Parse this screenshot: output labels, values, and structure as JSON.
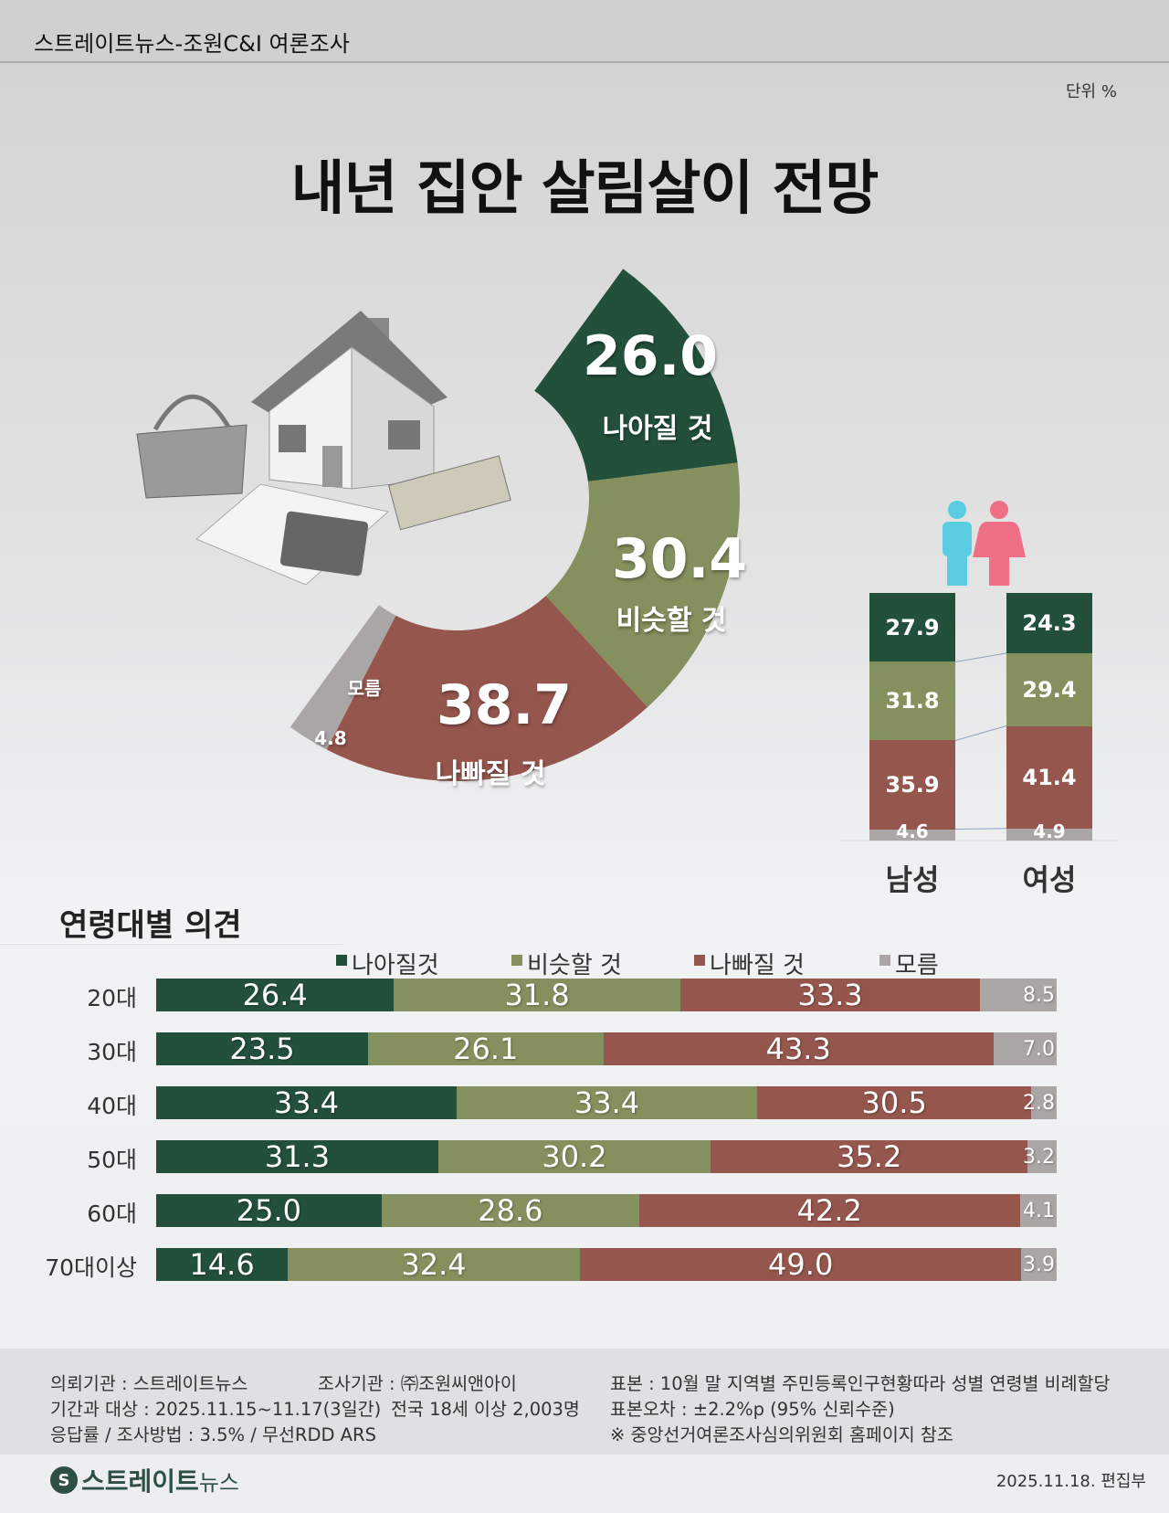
{
  "header": {
    "source": "스트레이트뉴스-조원C&I 여론조사"
  },
  "unit": "단위 %",
  "title": "내년 집안 살림살이 전망",
  "colors": {
    "better": "#23503a",
    "same": "#84905e",
    "worse": "#95564d",
    "unknown": "#aaa6a6"
  },
  "chart_data": [
    {
      "type": "pie",
      "title": "내년 집안 살림살이 전망",
      "variant": "half-donut",
      "categories": [
        "나아질 것",
        "비슷할 것",
        "나빠질 것",
        "모름"
      ],
      "values": [
        26.0,
        30.4,
        38.7,
        4.8
      ],
      "labels": [
        "26.0",
        "30.4",
        "38.7",
        "4.8"
      ]
    },
    {
      "type": "bar",
      "stacked": true,
      "orientation": "vertical",
      "categories": [
        "남성",
        "여성"
      ],
      "series": [
        {
          "name": "나아질 것",
          "values": [
            27.9,
            24.3
          ],
          "labels": [
            "27.9",
            "24.3"
          ]
        },
        {
          "name": "비슷할 것",
          "values": [
            31.8,
            29.4
          ],
          "labels": [
            "31.8",
            "29.4"
          ]
        },
        {
          "name": "나빠질 것",
          "values": [
            35.9,
            41.4
          ],
          "labels": [
            "35.9",
            "41.4"
          ]
        },
        {
          "name": "모름",
          "values": [
            4.6,
            4.9
          ],
          "labels": [
            "4.6",
            "4.9"
          ]
        }
      ]
    },
    {
      "type": "bar",
      "stacked": true,
      "orientation": "horizontal",
      "title": "연령대별 의견",
      "legend": [
        "나아질것",
        "비슷할 것",
        "나빠질 것",
        "모름"
      ],
      "legend_position": "top",
      "categories": [
        "20대",
        "30대",
        "40대",
        "50대",
        "60대",
        "70대이상"
      ],
      "series": [
        {
          "name": "나아질것",
          "values": [
            26.4,
            23.5,
            33.4,
            31.3,
            25.0,
            14.6
          ],
          "labels": [
            "26.4",
            "23.5",
            "33.4",
            "31.3",
            "25.0",
            "14.6"
          ]
        },
        {
          "name": "비슷할 것",
          "values": [
            31.8,
            26.1,
            33.4,
            30.2,
            28.6,
            32.4
          ],
          "labels": [
            "31.8",
            "26.1",
            "33.4",
            "30.2",
            "28.6",
            "32.4"
          ]
        },
        {
          "name": "나빠질 것",
          "values": [
            33.3,
            43.3,
            30.5,
            35.2,
            42.2,
            49.0
          ],
          "labels": [
            "33.3",
            "43.3",
            "30.5",
            "35.2",
            "42.2",
            "49.0"
          ]
        },
        {
          "name": "모름",
          "values": [
            8.5,
            7.0,
            2.8,
            3.2,
            4.1,
            3.9
          ],
          "labels": [
            "8.5",
            "7.0",
            "2.8",
            "3.2",
            "4.1",
            "3.9"
          ]
        }
      ]
    }
  ],
  "footer": {
    "client": "의뢰기관 : 스트레이트뉴스",
    "agency": "조사기관 : ㈜조원씨앤아이",
    "sample": "표본 : 10월 말 지역별 주민등록인구현황따라 성별 연령별 비례할당",
    "period": "기간과 대상 : 2025.11.15~11.17(3일간)",
    "target": "전국 18세 이상  2,003명",
    "error": "표본오차 : ±2.2%p (95% 신뢰수준)",
    "method": "응답률 / 조사방법 : 3.5% / 무선RDD ARS",
    "note": "※ 중앙선거여론조사심의위원회 홈페이지 참조",
    "logo": "스트레이트뉴스",
    "logo_main": "스트레이트",
    "logo_sub": "뉴스",
    "date": "2025.11.18. 편집부"
  }
}
